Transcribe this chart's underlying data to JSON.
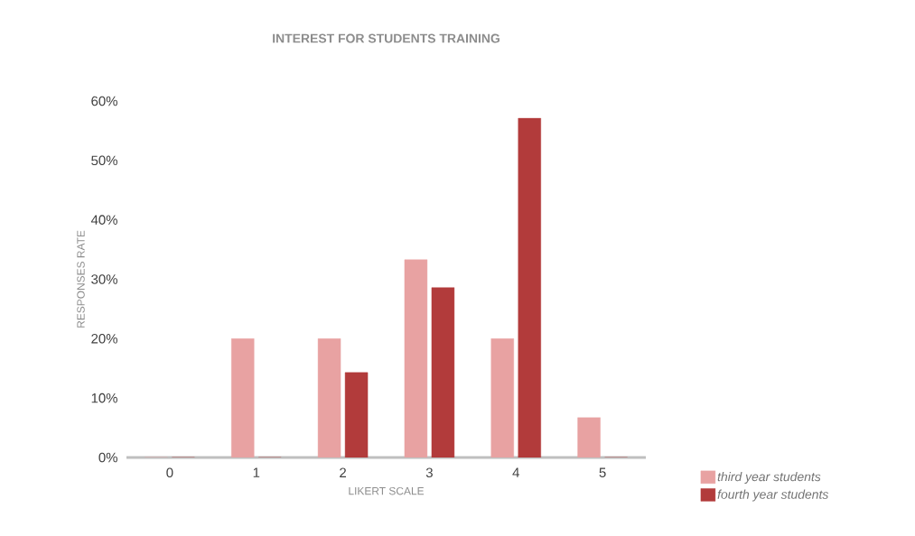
{
  "chart_data": {
    "type": "bar",
    "title": "INTEREST FOR STUDENTS TRAINING",
    "xlabel": "LIKERT SCALE",
    "ylabel": "RESPONSES RATE",
    "categories": [
      "0",
      "1",
      "2",
      "3",
      "4",
      "5"
    ],
    "series": [
      {
        "name": "third year students",
        "color": "#e8a2a2",
        "values": [
          0,
          20,
          20,
          33.3,
          20,
          6.7
        ]
      },
      {
        "name": "fourth year students",
        "color": "#b23b3b",
        "values": [
          0,
          0,
          14.3,
          28.6,
          57.1,
          0
        ]
      }
    ],
    "ylim": [
      0,
      60
    ],
    "yticks": [
      {
        "value": 0,
        "label": "0%"
      },
      {
        "value": 10,
        "label": "10%"
      },
      {
        "value": 20,
        "label": "20%"
      },
      {
        "value": 30,
        "label": "30%"
      },
      {
        "value": 40,
        "label": "40%"
      },
      {
        "value": 50,
        "label": "50%"
      },
      {
        "value": 60,
        "label": "60%"
      }
    ],
    "grid": false,
    "legend": "bottom right"
  }
}
